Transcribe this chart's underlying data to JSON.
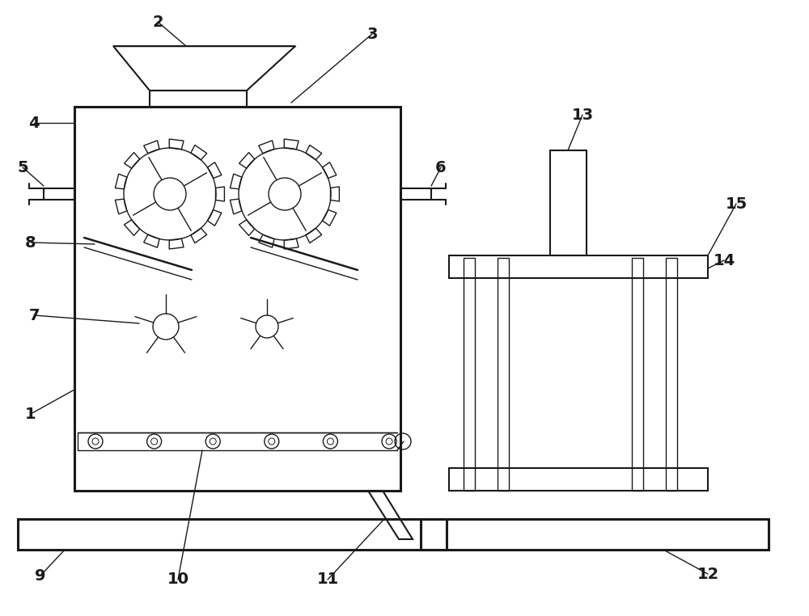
{
  "bg_color": "#ffffff",
  "line_color": "#1a1a1a",
  "lw_thick": 2.2,
  "lw_med": 1.5,
  "lw_thin": 1.0,
  "label_fontsize": 14
}
